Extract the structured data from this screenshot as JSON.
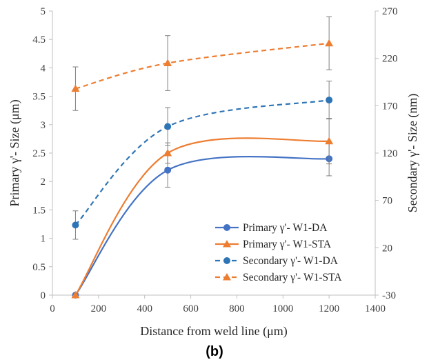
{
  "chart_data": {
    "type": "line",
    "panel_label": "(b)",
    "xlabel": "Distance from weld line (μm)",
    "ylabel": "Primary γ'- Size (μm)",
    "y2label": "Secondary γ'- Size (nm)",
    "xlim": [
      0,
      1400
    ],
    "ylim": [
      0,
      5
    ],
    "y2lim": [
      -30,
      270
    ],
    "x_ticks": [
      "0",
      "200",
      "400",
      "600",
      "800",
      "1000",
      "1200",
      "1400"
    ],
    "y_ticks": [
      "0",
      "0.5",
      "1",
      "1.5",
      "2",
      "2.5",
      "3",
      "3.5",
      "4",
      "4.5",
      "5"
    ],
    "y2_ticks": [
      "-30",
      "20",
      "70",
      "120",
      "170",
      "220",
      "270"
    ],
    "grid": false,
    "legend_position": "bottom-right",
    "series": [
      {
        "name": "Primary γ'- W1-DA",
        "axis": "left",
        "color": "#4472C4",
        "marker": "circle",
        "line": "smooth-solid",
        "x": [
          100,
          500,
          1200
        ],
        "y": [
          0,
          2.2,
          2.4
        ],
        "err": [
          0,
          0.3,
          0.3
        ]
      },
      {
        "name": "Primary γ'- W1-STA",
        "axis": "left",
        "color": "#ED7D31",
        "marker": "triangle",
        "line": "smooth-solid",
        "x": [
          100,
          500,
          1200
        ],
        "y": [
          0,
          2.5,
          2.71
        ],
        "err": [
          0,
          0.18,
          0.4
        ]
      },
      {
        "name": "Secondary γ'- W1-DA",
        "axis": "right",
        "color": "#2E75B6",
        "marker": "circle",
        "line": "dashed",
        "x": [
          100,
          500,
          1200
        ],
        "y": [
          44,
          148,
          176
        ],
        "err": [
          15,
          20,
          20
        ]
      },
      {
        "name": "Secondary γ'- W1-STA",
        "axis": "right",
        "color": "#ED7D31",
        "marker": "triangle",
        "line": "dashed",
        "x": [
          100,
          500,
          1200
        ],
        "y": [
          188,
          215,
          236
        ],
        "err": [
          23,
          29,
          28
        ]
      }
    ]
  }
}
